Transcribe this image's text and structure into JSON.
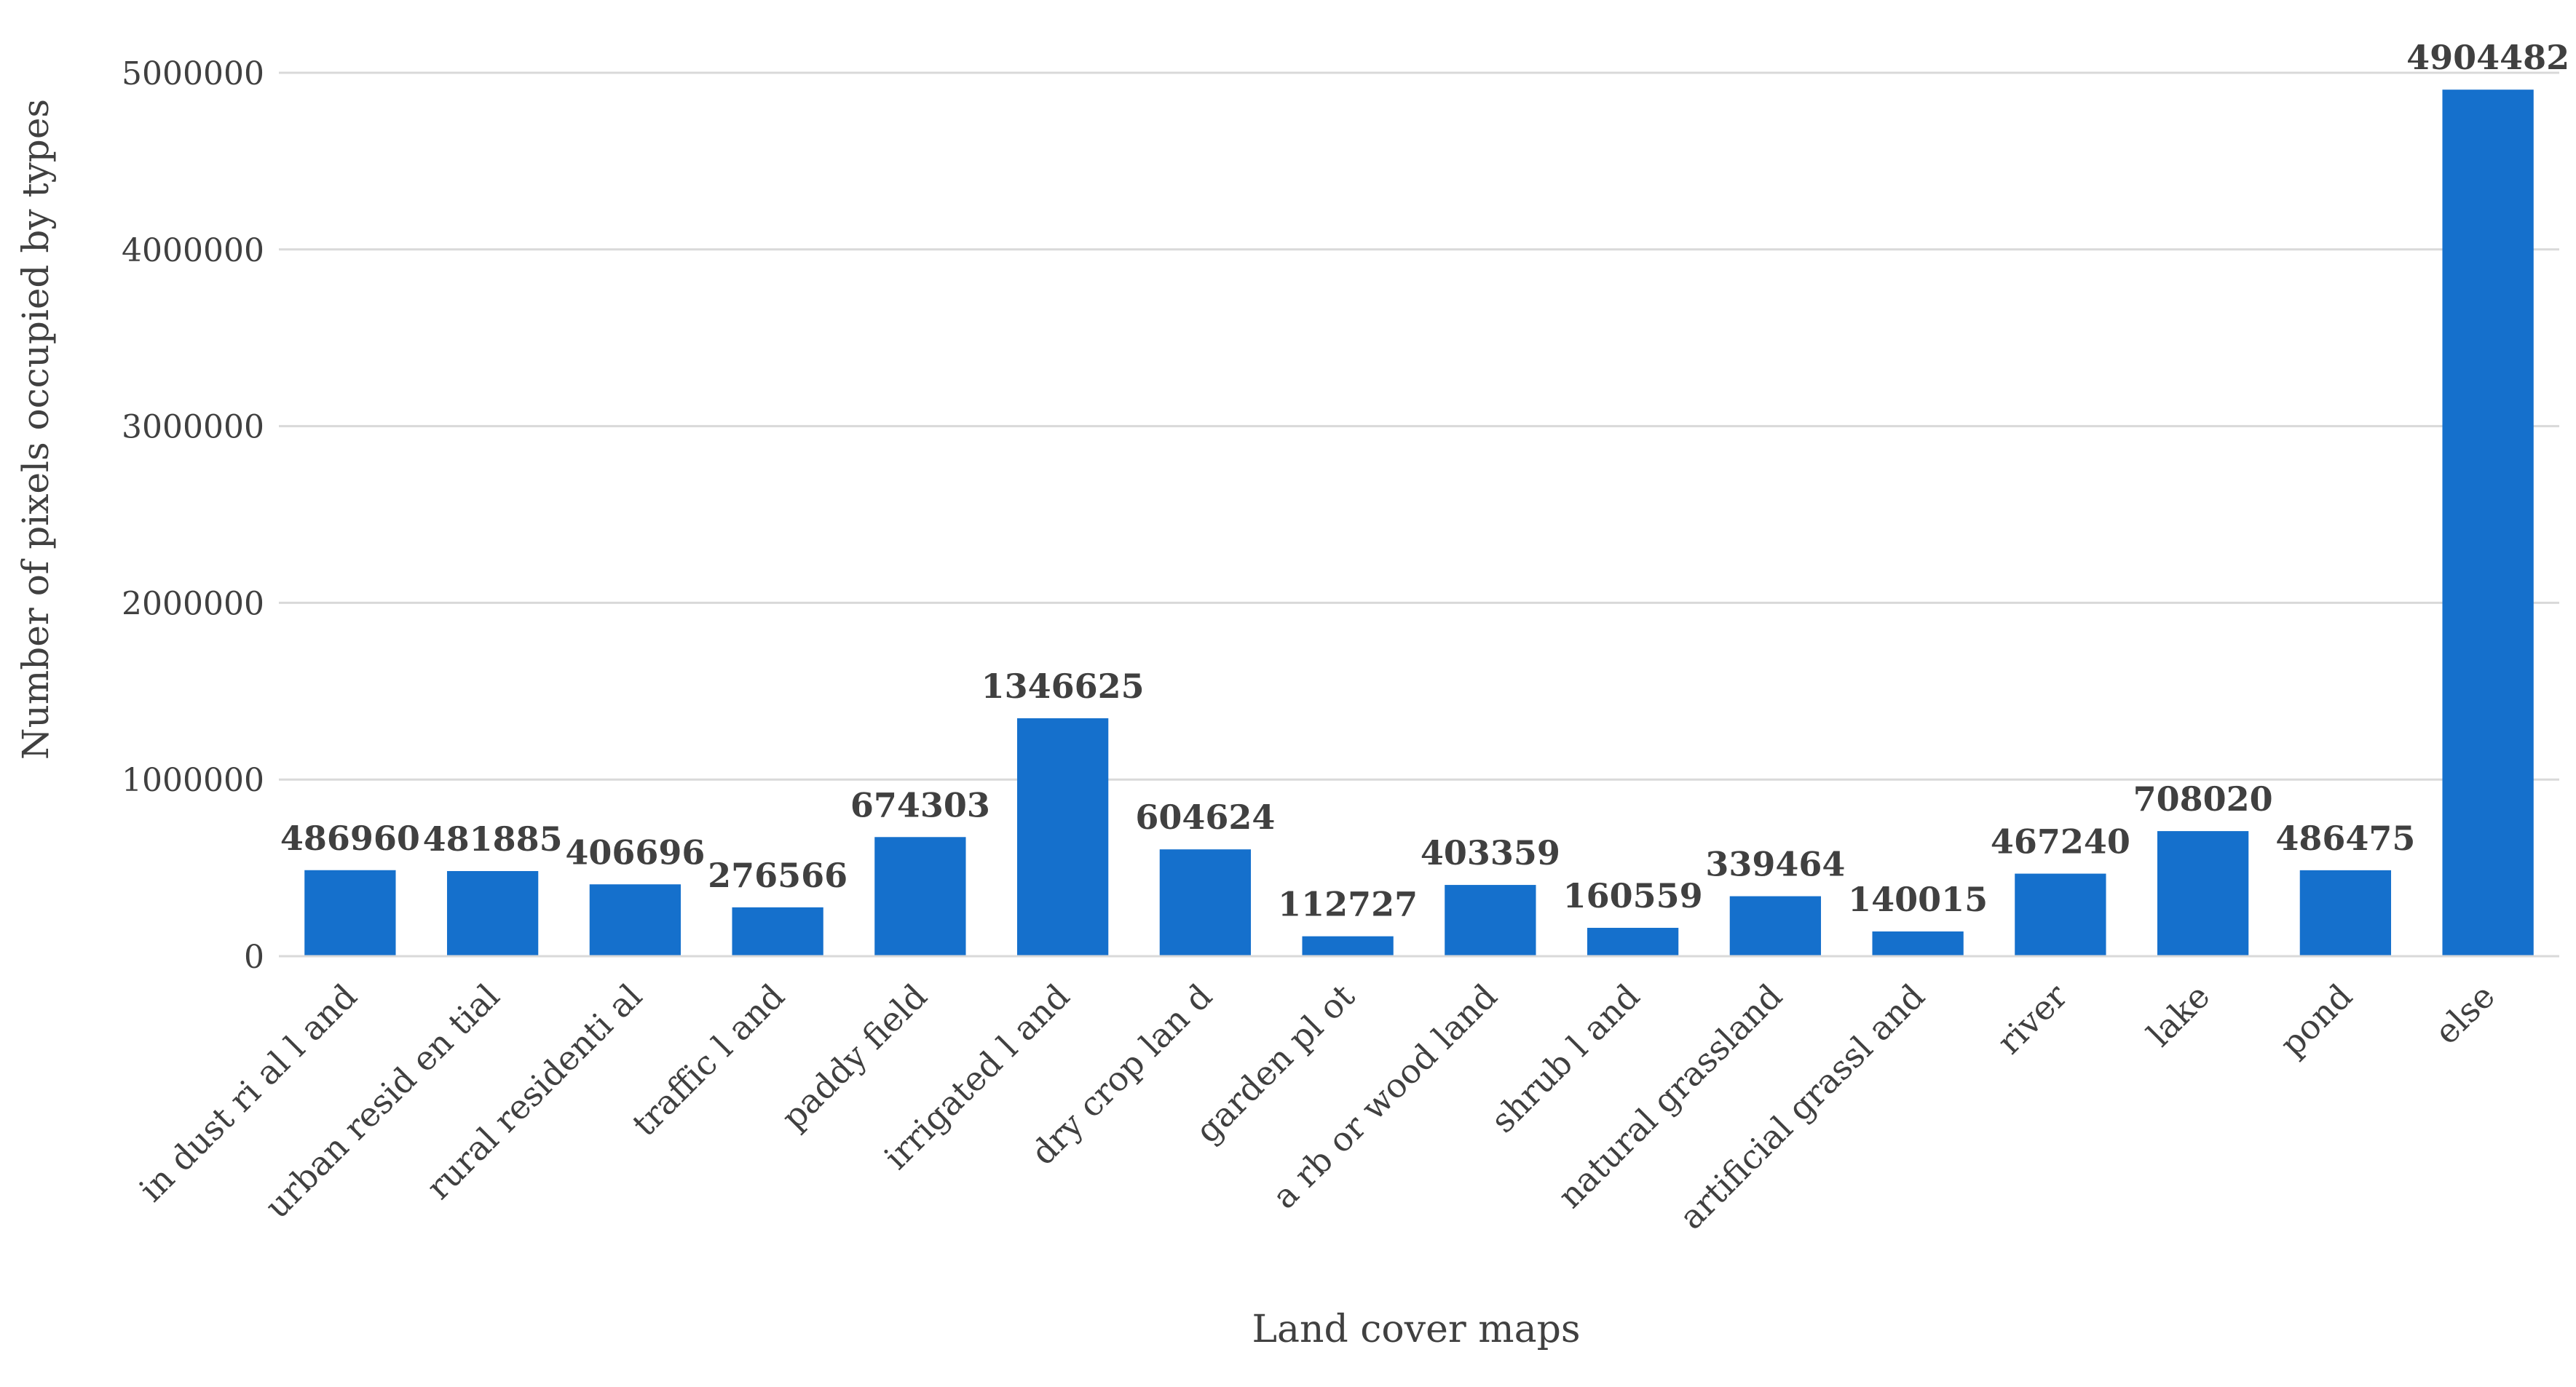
{
  "chart_data": {
    "type": "bar",
    "xlabel": "Land cover maps",
    "ylabel": "Number of pixels occupied by types",
    "ylim": [
      0,
      5000000
    ],
    "yticks": [
      0,
      1000000,
      2000000,
      3000000,
      4000000,
      5000000
    ],
    "ytick_labels": [
      "0",
      "1000000",
      "2000000",
      "3000000",
      "4000000",
      "5000000"
    ],
    "grid": true,
    "legend": "none",
    "bar_color": "#1570CC",
    "categories": [
      "in dust ri al l and",
      "urban resid en tial",
      "rural residenti al",
      "traffic l and",
      "paddy field",
      "irrigated l and",
      "dry crop lan d",
      "garden pl ot",
      "a rb or wood land",
      "shrub l and",
      "natural grassland",
      "artificial grassl and",
      "river",
      "lake",
      "pond",
      "else"
    ],
    "values": [
      486960,
      481885,
      406696,
      276566,
      674303,
      1346625,
      604624,
      112727,
      403359,
      160559,
      339464,
      140015,
      467240,
      708020,
      486475,
      4904482
    ],
    "value_labels": [
      "486960",
      "481885",
      "406696",
      "276566",
      "674303",
      "1346625",
      "604624",
      "112727",
      "403359",
      "160559",
      "339464",
      "140015",
      "467240",
      "708020",
      "486475",
      "4904482"
    ]
  }
}
